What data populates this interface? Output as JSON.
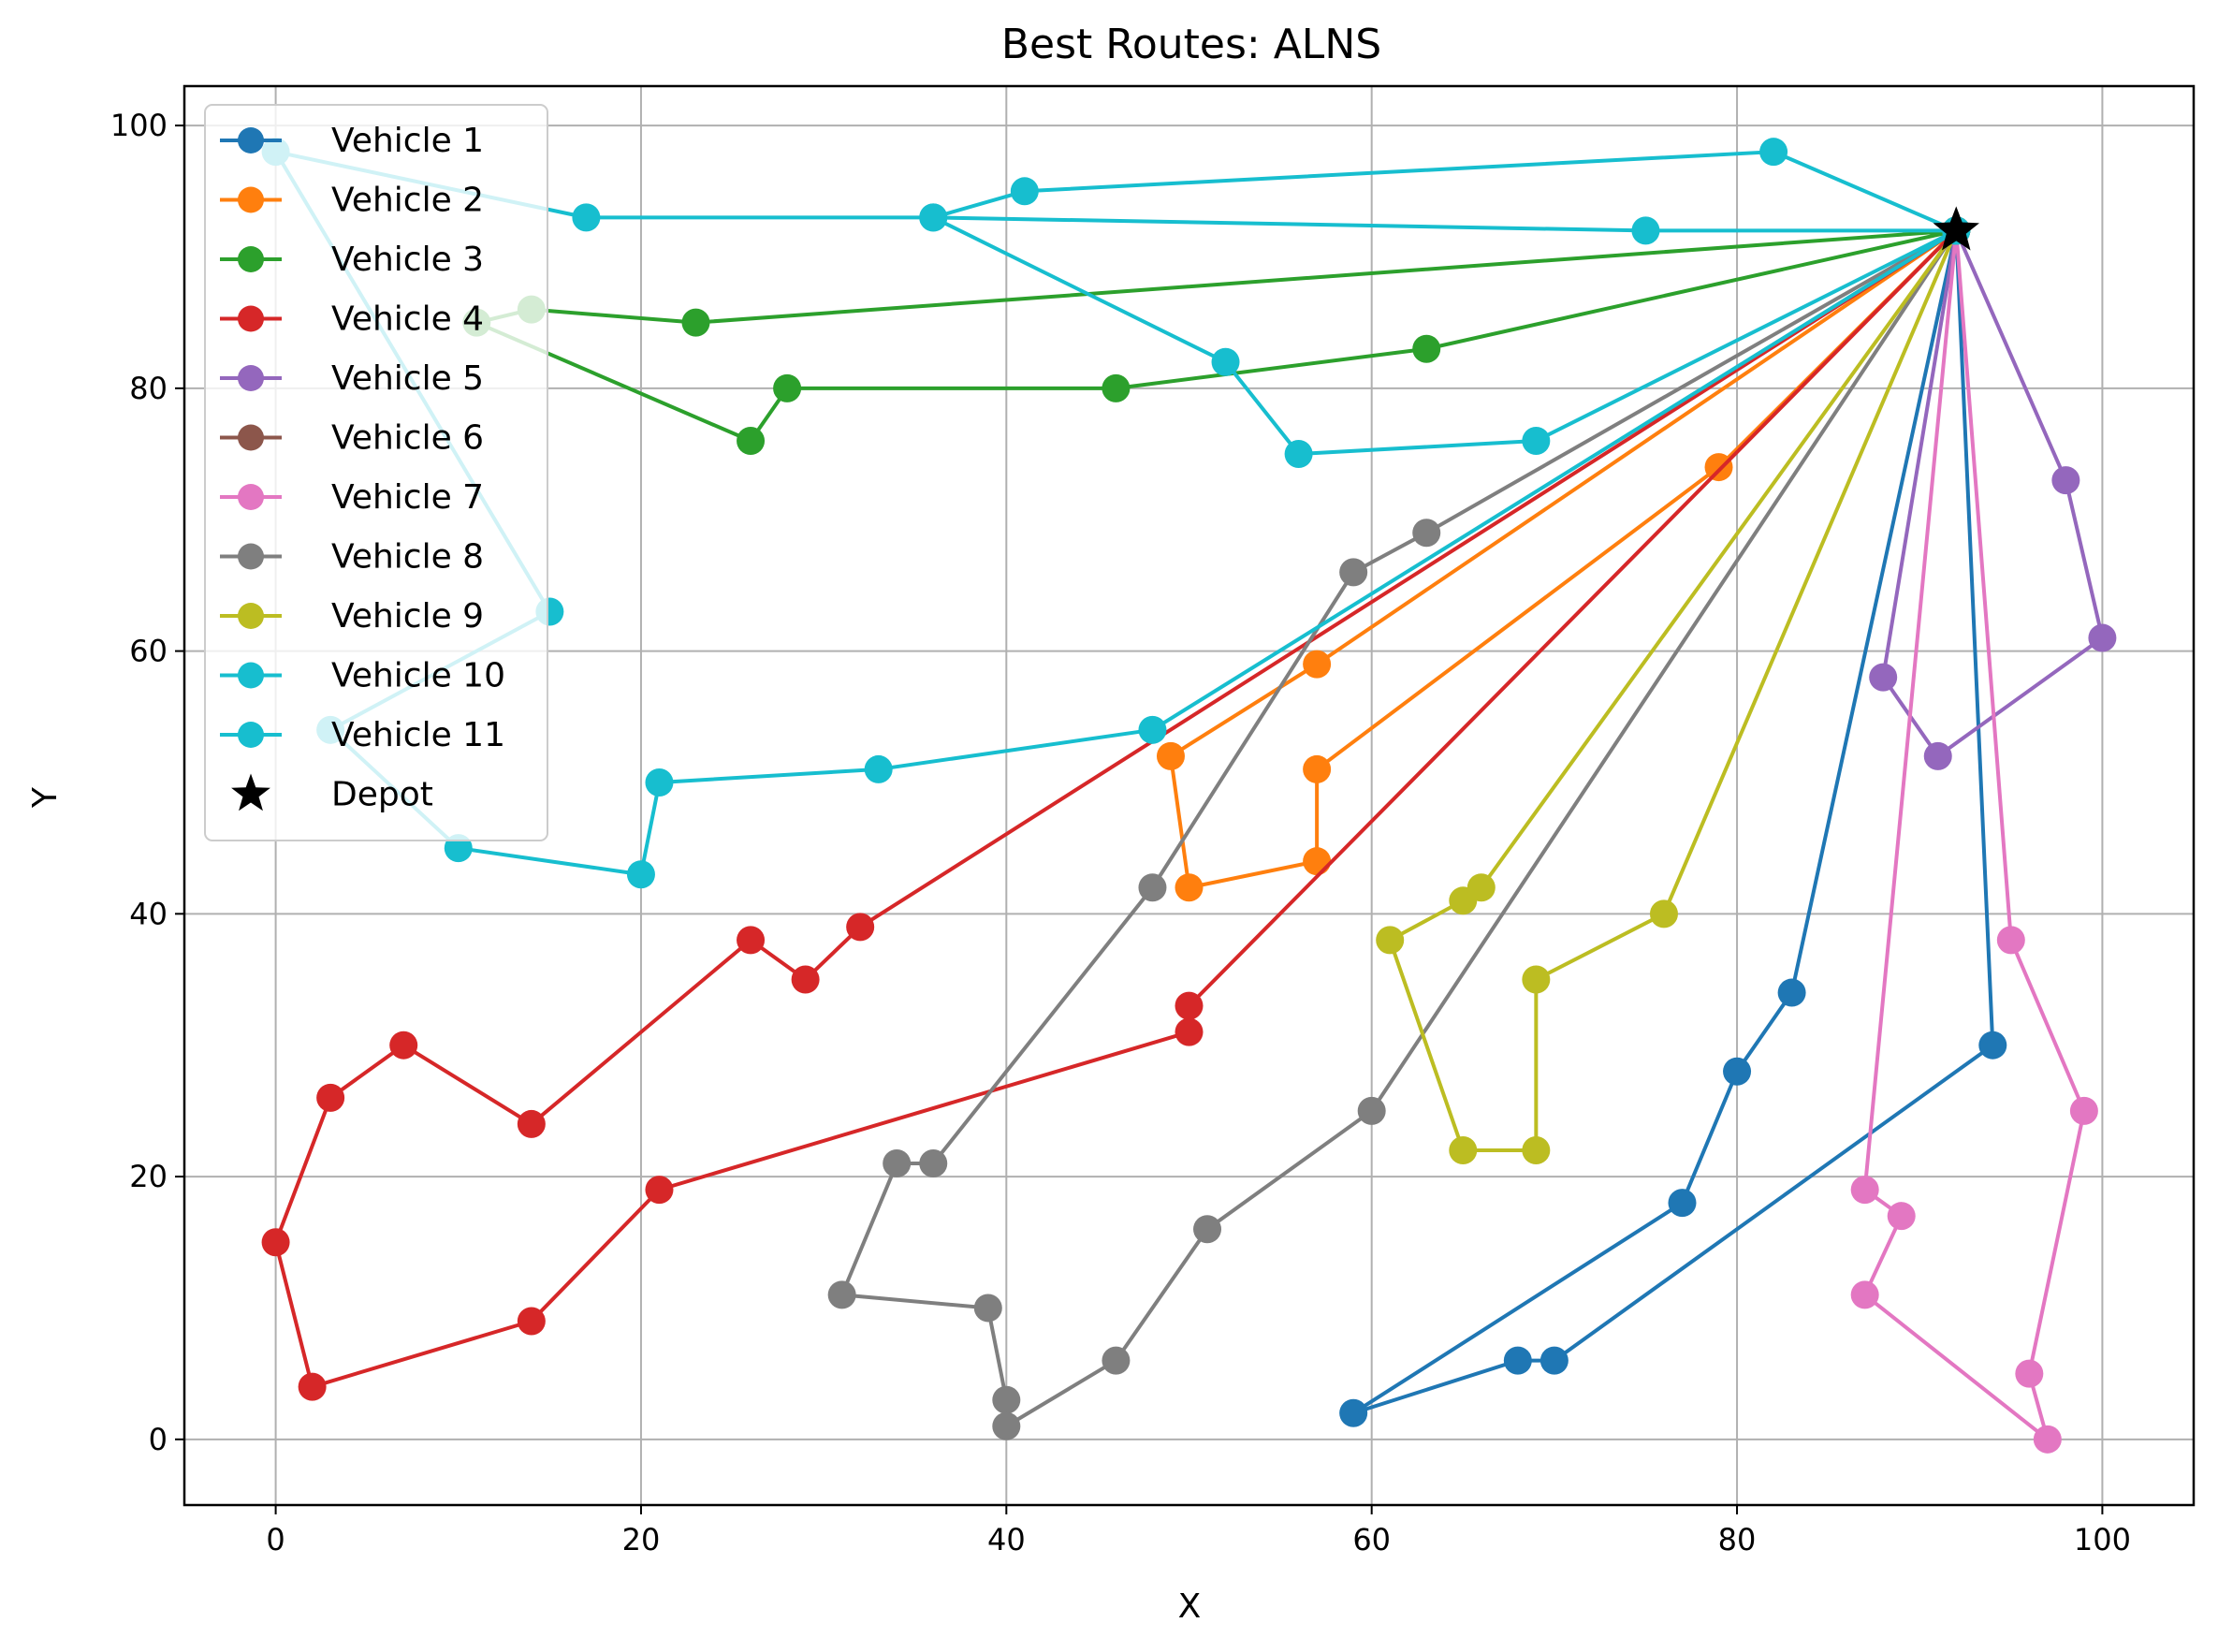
{
  "chart_data": {
    "type": "scatter",
    "title": "Best Routes: ALNS",
    "xlabel": "X",
    "ylabel": "Y",
    "xlim": [
      -5,
      105
    ],
    "ylim": [
      -5,
      103
    ],
    "xticks": [
      0,
      20,
      40,
      60,
      80,
      100
    ],
    "yticks": [
      0,
      20,
      40,
      60,
      80,
      100
    ],
    "grid": true,
    "legend_position": "upper-left",
    "depot": {
      "name": "Depot",
      "x": 92,
      "y": 92,
      "color": "#000000"
    },
    "series": [
      {
        "name": "Vehicle 1",
        "color": "#1f77b4",
        "points": [
          [
            92,
            92
          ],
          [
            83,
            34
          ],
          [
            80,
            28
          ],
          [
            77,
            18
          ],
          [
            59,
            2
          ],
          [
            68,
            6
          ],
          [
            70,
            6
          ],
          [
            94,
            30
          ],
          [
            92,
            92
          ]
        ]
      },
      {
        "name": "Vehicle 2",
        "color": "#ff7f0e",
        "points": [
          [
            92,
            92
          ],
          [
            79,
            74
          ],
          [
            57,
            51
          ],
          [
            57,
            44
          ],
          [
            50,
            42
          ],
          [
            49,
            52
          ],
          [
            57,
            59
          ],
          [
            92,
            92
          ]
        ]
      },
      {
        "name": "Vehicle 3",
        "color": "#2ca02c",
        "points": [
          [
            92,
            92
          ],
          [
            23,
            85
          ],
          [
            14,
            86
          ],
          [
            11,
            85
          ],
          [
            26,
            76
          ],
          [
            28,
            80
          ],
          [
            46,
            80
          ],
          [
            63,
            83
          ],
          [
            92,
            92
          ]
        ]
      },
      {
        "name": "Vehicle 4",
        "color": "#d62728",
        "points": [
          [
            92,
            92
          ],
          [
            32,
            39
          ],
          [
            29,
            35
          ],
          [
            26,
            38
          ],
          [
            14,
            24
          ],
          [
            7,
            30
          ],
          [
            3,
            26
          ],
          [
            0,
            15
          ],
          [
            2,
            4
          ],
          [
            14,
            9
          ],
          [
            21,
            19
          ],
          [
            50,
            31
          ],
          [
            50,
            33
          ],
          [
            92,
            92
          ]
        ]
      },
      {
        "name": "Vehicle 5",
        "color": "#9467bd",
        "points": [
          [
            92,
            92
          ],
          [
            98,
            73
          ],
          [
            100,
            61
          ],
          [
            91,
            52
          ],
          [
            88,
            58
          ],
          [
            92,
            92
          ]
        ]
      },
      {
        "name": "Vehicle 6",
        "color": "#8c564b",
        "points": []
      },
      {
        "name": "Vehicle 7",
        "color": "#e377c2",
        "points": [
          [
            92,
            92
          ],
          [
            95,
            38
          ],
          [
            99,
            25
          ],
          [
            96,
            5
          ],
          [
            97,
            0
          ],
          [
            87,
            11
          ],
          [
            89,
            17
          ],
          [
            87,
            19
          ],
          [
            92,
            92
          ]
        ]
      },
      {
        "name": "Vehicle 8",
        "color": "#7f7f7f",
        "points": [
          [
            92,
            92
          ],
          [
            63,
            69
          ],
          [
            59,
            66
          ],
          [
            48,
            42
          ],
          [
            36,
            21
          ],
          [
            34,
            21
          ],
          [
            31,
            11
          ],
          [
            39,
            10
          ],
          [
            40,
            3
          ],
          [
            40,
            1
          ],
          [
            46,
            6
          ],
          [
            51,
            16
          ],
          [
            60,
            25
          ],
          [
            92,
            92
          ]
        ]
      },
      {
        "name": "Vehicle 9",
        "color": "#bcbd22",
        "points": [
          [
            92,
            92
          ],
          [
            76,
            40
          ],
          [
            69,
            35
          ],
          [
            69,
            22
          ],
          [
            65,
            22
          ],
          [
            61,
            38
          ],
          [
            65,
            41
          ],
          [
            66,
            42
          ],
          [
            92,
            92
          ]
        ]
      },
      {
        "name": "Vehicle 10",
        "color": "#17becf",
        "points": [
          [
            92,
            92
          ],
          [
            82,
            98
          ],
          [
            41,
            95
          ],
          [
            36,
            93
          ],
          [
            52,
            82
          ],
          [
            56,
            75
          ],
          [
            69,
            76
          ],
          [
            92,
            92
          ]
        ]
      },
      {
        "name": "Vehicle 11",
        "color": "#17becf",
        "points": [
          [
            92,
            92
          ],
          [
            75,
            92
          ],
          [
            36,
            93
          ],
          [
            17,
            93
          ],
          [
            0,
            98
          ],
          [
            15,
            63
          ],
          [
            3,
            54
          ],
          [
            10,
            45
          ],
          [
            20,
            43
          ],
          [
            21,
            50
          ],
          [
            33,
            51
          ],
          [
            48,
            54
          ],
          [
            92,
            92
          ]
        ]
      }
    ]
  }
}
